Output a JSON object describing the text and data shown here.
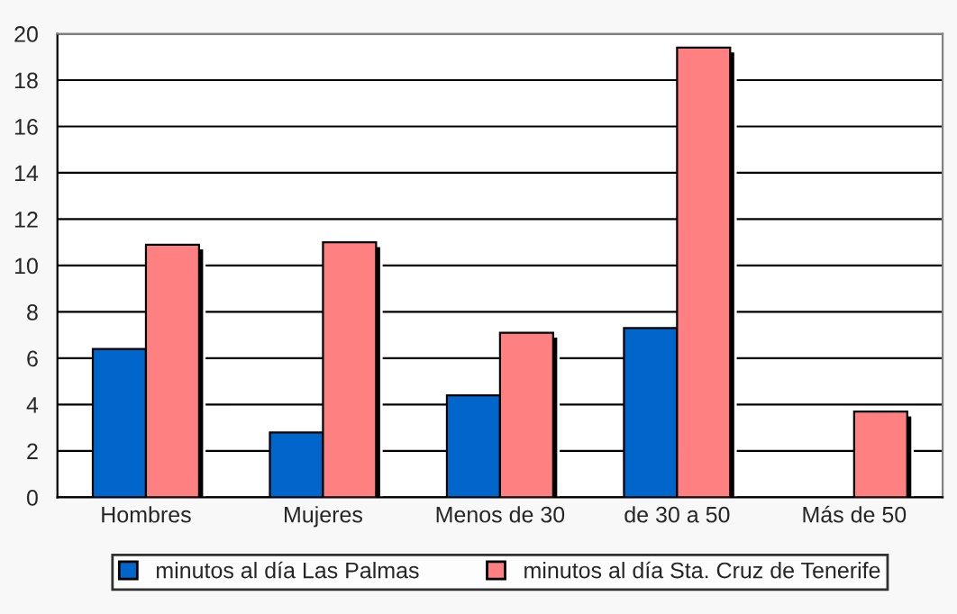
{
  "chart_data": {
    "type": "bar",
    "categories": [
      "Hombres",
      "Mujeres",
      "Menos de 30",
      "de 30 a 50",
      "Más de 50"
    ],
    "series": [
      {
        "name": "minutos al día Las Palmas",
        "color": "#0066cc",
        "values": [
          6.4,
          2.8,
          4.4,
          7.3,
          null
        ]
      },
      {
        "name": "minutos al día Sta. Cruz de Tenerife",
        "color": "#ff8080",
        "values": [
          10.9,
          11.0,
          7.1,
          19.4,
          3.7
        ]
      }
    ],
    "ylim": [
      0,
      20
    ],
    "yticks": [
      0,
      2,
      4,
      6,
      8,
      10,
      12,
      14,
      16,
      18,
      20
    ],
    "grid": "y",
    "legend": "bottom"
  }
}
